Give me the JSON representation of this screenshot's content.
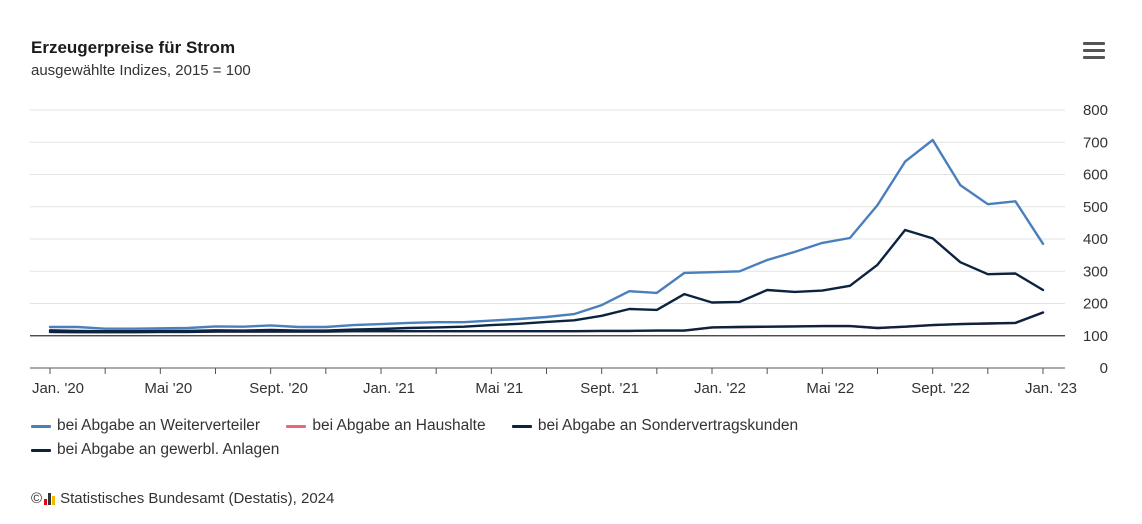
{
  "title": "Erzeugerpreise für Strom",
  "subtitle": "ausgewählte Indizes, 2015 = 100",
  "footer": {
    "copyright_symbol": "©",
    "source": "Statistisches Bundesamt (Destatis), 2024"
  },
  "icons": {
    "menu": "hamburger-menu-icon",
    "logo": "destatis-logo-icon"
  },
  "colors": {
    "weiterverteiler": "#4a7fbd",
    "haushalte": "#e8687a",
    "sondervertrag": "#0c2340",
    "gewerbl": "#0c2340",
    "baseline": "#333333",
    "grid": "#e3e3e3"
  },
  "chart_data": {
    "type": "line",
    "title": "Erzeugerpreise für Strom",
    "subtitle": "ausgewählte Indizes, 2015 = 100",
    "xlabel": "",
    "ylabel": "",
    "ylim": [
      0,
      800
    ],
    "yticks": [
      0,
      100,
      200,
      300,
      400,
      500,
      600,
      700,
      800
    ],
    "ytick_labels": [
      "0",
      "100",
      "200",
      "300",
      "400",
      "500",
      "600",
      "700",
      "800"
    ],
    "grid": true,
    "baseline": 100,
    "legend_position": "bottom-left",
    "x": [
      "Jan. '20",
      "Feb. '20",
      "März '20",
      "Apr. '20",
      "Mai '20",
      "Juni '20",
      "Juli '20",
      "Aug. '20",
      "Sept. '20",
      "Okt. '20",
      "Nov. '20",
      "Dez. '20",
      "Jan. '21",
      "Feb. '21",
      "März '21",
      "Apr. '21",
      "Mai '21",
      "Juni '21",
      "Juli '21",
      "Aug. '21",
      "Sept. '21",
      "Okt. '21",
      "Nov. '21",
      "Dez. '21",
      "Jan. '22",
      "Feb. '22",
      "März '22",
      "Apr. '22",
      "Mai '22",
      "Juni '22",
      "Juli '22",
      "Aug. '22",
      "Sept. '22",
      "Okt. '22",
      "Nov. '22",
      "Dez. '22",
      "Jan. '23"
    ],
    "xtick_labels": [
      "Jan. '20",
      "Mai '20",
      "Sept. '20",
      "Jan. '21",
      "Mai '21",
      "Sept. '21",
      "Jan. '22",
      "Mai '22",
      "Sept. '22",
      "Jan. '23"
    ],
    "xtick_label_index": [
      0,
      4,
      8,
      12,
      16,
      20,
      24,
      28,
      32,
      36
    ],
    "series": [
      {
        "name": "bei Abgabe an Weiterverteiler",
        "color_key": "weiterverteiler",
        "values": [
          127,
          127,
          122,
          122,
          123,
          124,
          129,
          128,
          132,
          127,
          127,
          133,
          136,
          140,
          142,
          142,
          147,
          152,
          158,
          167,
          195,
          238,
          233,
          295,
          297,
          300,
          335,
          360,
          388,
          403,
          505,
          640,
          707,
          567,
          508,
          517,
          385
        ]
      },
      {
        "name": "bei Abgabe an Haushalte",
        "color_key": "haushalte",
        "values": [
          112,
          111,
          111,
          111,
          112,
          112,
          113,
          113,
          113,
          113,
          113,
          114,
          114,
          114,
          114,
          114,
          114,
          114,
          114,
          114,
          115,
          115,
          116,
          116,
          126,
          127,
          128,
          129,
          130,
          130,
          124,
          128,
          133,
          136,
          138,
          140,
          172
        ]
      },
      {
        "name": "bei Abgabe an Sondervertragskunden",
        "color_key": "sondervertrag",
        "values": [
          117,
          115,
          114,
          114,
          115,
          115,
          117,
          116,
          118,
          116,
          116,
          119,
          121,
          124,
          126,
          128,
          133,
          137,
          143,
          148,
          162,
          183,
          180,
          229,
          203,
          205,
          242,
          236,
          240,
          255,
          320,
          428,
          402,
          328,
          291,
          293,
          242
        ]
      },
      {
        "name": "bei Abgabe an gewerbl. Anlagen",
        "color_key": "gewerbl",
        "values": [
          112,
          111,
          111,
          111,
          112,
          112,
          113,
          113,
          113,
          113,
          113,
          114,
          114,
          114,
          114,
          114,
          114,
          114,
          114,
          114,
          115,
          115,
          116,
          116,
          126,
          127,
          128,
          129,
          130,
          130,
          124,
          128,
          133,
          136,
          138,
          140,
          172
        ]
      }
    ]
  }
}
